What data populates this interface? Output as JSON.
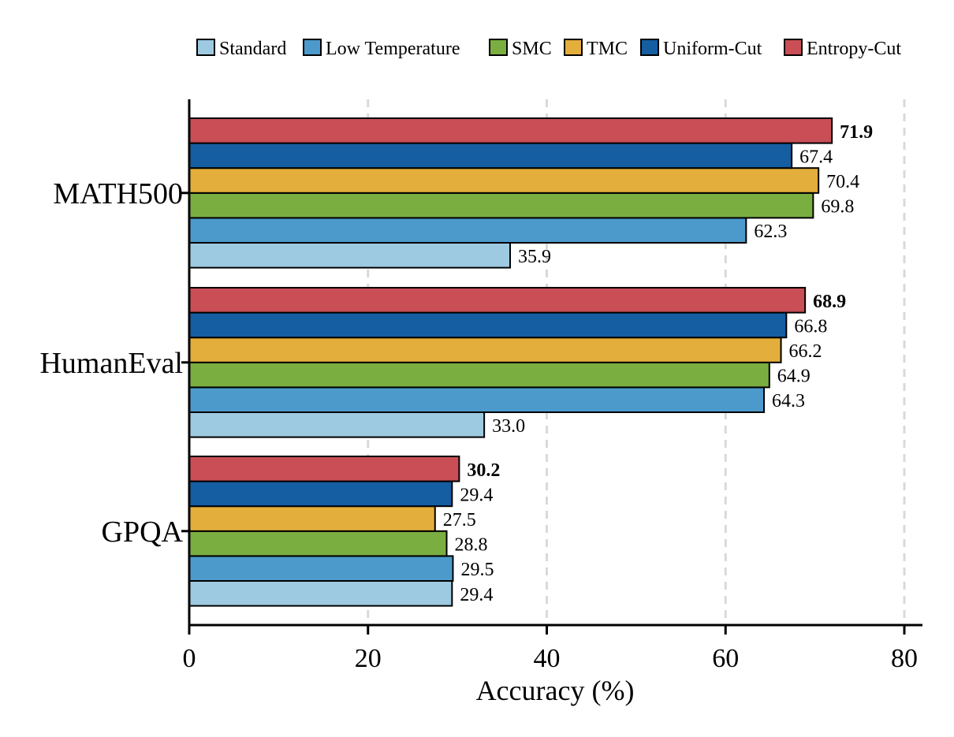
{
  "chart_data": {
    "type": "bar",
    "orientation": "horizontal",
    "categories": [
      "MATH500",
      "HumanEval",
      "GPQA"
    ],
    "series": [
      {
        "name": "Standard",
        "color": "#9ECAE1",
        "values": [
          35.9,
          33.0,
          29.4
        ]
      },
      {
        "name": "Low Temperature",
        "color": "#4C9ACB",
        "values": [
          62.3,
          64.3,
          29.5
        ]
      },
      {
        "name": "SMC",
        "color": "#7BAE41",
        "values": [
          69.8,
          64.9,
          28.8
        ]
      },
      {
        "name": "TMC",
        "color": "#E3AE3B",
        "values": [
          70.4,
          66.2,
          27.5
        ]
      },
      {
        "name": "Uniform-Cut",
        "color": "#155EA1",
        "values": [
          67.4,
          66.8,
          29.4
        ]
      },
      {
        "name": "Entropy-Cut",
        "color": "#C94E56",
        "values": [
          71.9,
          68.9,
          30.2
        ]
      }
    ],
    "value_labels": {
      "MATH500": [
        "35.9",
        "62.3",
        "69.8",
        "70.4",
        "67.4",
        "71.9"
      ],
      "HumanEval": [
        "33.0",
        "64.3",
        "64.9",
        "66.2",
        "66.8",
        "68.9"
      ],
      "GPQA": [
        "29.4",
        "29.5",
        "28.8",
        "27.5",
        "29.4",
        "30.2"
      ]
    },
    "bold_series": "Entropy-Cut",
    "xlabel": "Accuracy (%)",
    "ylabel": "",
    "title": "",
    "xlim": [
      0,
      82
    ],
    "xticks": [
      0,
      20,
      40,
      60,
      80
    ],
    "grid": "vertical dashed",
    "legend_position": "top"
  }
}
